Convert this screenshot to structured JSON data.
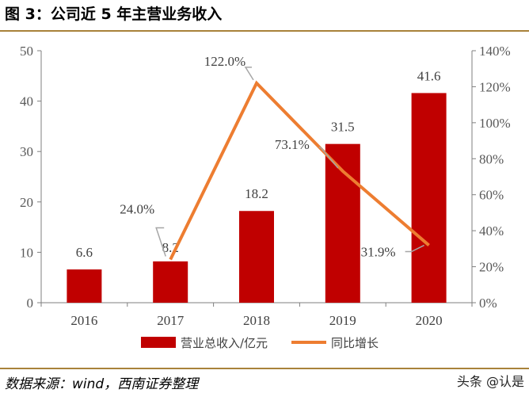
{
  "title": "图 3：公司近 5 年主营业务收入",
  "source": "数据来源：wind，西南证券整理",
  "watermark": "头条 @认是",
  "colors": {
    "bar": "#c00000",
    "line": "#ed7d31",
    "rule": "#a8823a",
    "leader": "#a6a6a6"
  },
  "chart_data": {
    "type": "bar",
    "categories": [
      "2016",
      "2017",
      "2018",
      "2019",
      "2020"
    ],
    "series": [
      {
        "name": "营业总收入/亿元",
        "type": "bar",
        "axis": "left",
        "values": [
          6.6,
          8.2,
          18.2,
          31.5,
          41.6
        ],
        "labels": [
          "6.6",
          "8.2",
          "18.2",
          "31.5",
          "41.6"
        ]
      },
      {
        "name": "同比增长",
        "type": "line",
        "axis": "right",
        "values": [
          null,
          24.0,
          122.0,
          73.1,
          31.9
        ],
        "labels": [
          "",
          "24.0%",
          "122.0%",
          "73.1%",
          "31.9%"
        ]
      }
    ],
    "y_left": {
      "range": [
        0,
        50
      ],
      "ticks": [
        "0",
        "10",
        "20",
        "30",
        "40",
        "50"
      ]
    },
    "y_right": {
      "range": [
        0,
        140
      ],
      "ticks": [
        "0%",
        "20%",
        "40%",
        "60%",
        "80%",
        "100%",
        "120%",
        "140%"
      ]
    },
    "grid": false,
    "legend": "bottom"
  }
}
